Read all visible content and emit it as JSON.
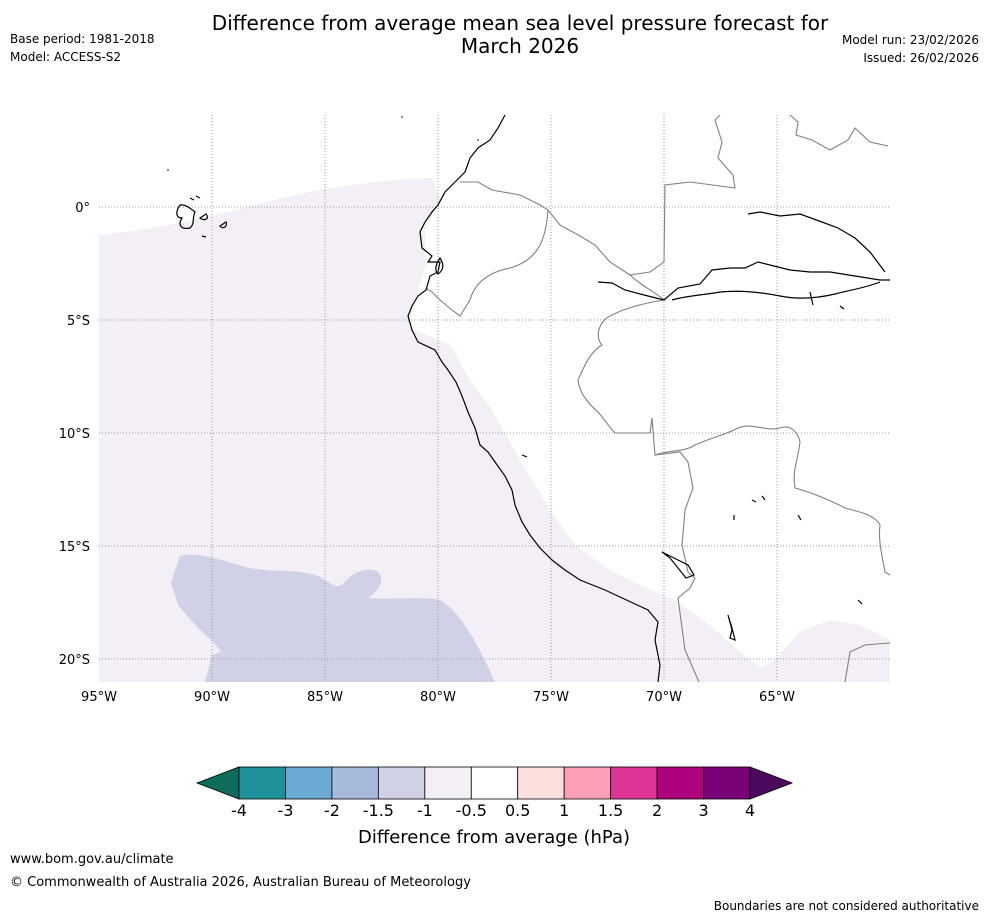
{
  "header": {
    "base_period": "Base period: 1981-2018",
    "model": "Model: ACCESS-S2",
    "title_line1": "Difference from average mean sea level pressure forecast for",
    "title_line2": "March 2026",
    "model_run": "Model run: 23/02/2026",
    "issued": "Issued: 26/02/2026"
  },
  "map": {
    "lat_labels": [
      "0°",
      "5°S",
      "10°S",
      "15°S",
      "20°S"
    ],
    "lon_labels": [
      "95°W",
      "90°W",
      "85°W",
      "80°W",
      "75°W",
      "70°W",
      "65°W"
    ],
    "regions": [
      {
        "name": "difference -1.5 to -1 hPa",
        "color": "#d0d1e6"
      },
      {
        "name": "difference -1 to -0.5 hPa",
        "color": "#f4eef6"
      }
    ]
  },
  "colorbar": {
    "title": "Difference from average (hPa)",
    "tick_labels": [
      "-4",
      "-3",
      "-2",
      "-1.5",
      "-1",
      "-0.5",
      "0.5",
      "1",
      "1.5",
      "2",
      "3",
      "4"
    ],
    "low_extend_color": "#0f6b5c",
    "high_extend_color": "#4b0a5e",
    "bins": [
      {
        "range": "-4 to -3",
        "color": "#1d9399"
      },
      {
        "range": "-3 to -2",
        "color": "#6aaad3"
      },
      {
        "range": "-2 to -1.5",
        "color": "#a8badb"
      },
      {
        "range": "-1.5 to -1",
        "color": "#d0d1e6"
      },
      {
        "range": "-1 to -0.5",
        "color": "#f4eef6"
      },
      {
        "range": "-0.5 to 0.5",
        "color": "#ffffff"
      },
      {
        "range": "0.5 to 1",
        "color": "#fde0dd"
      },
      {
        "range": "1 to 1.5",
        "color": "#fa9fb5"
      },
      {
        "range": "1.5 to 2",
        "color": "#dd3497"
      },
      {
        "range": "2 to 3",
        "color": "#ae017e"
      },
      {
        "range": "3 to 4",
        "color": "#7a0177"
      }
    ]
  },
  "footer": {
    "url": "www.bom.gov.au/climate",
    "copyright": "© Commonwealth of Australia 2026, Australian Bureau of Meteorology",
    "note": "Boundaries are not considered authoritative"
  }
}
